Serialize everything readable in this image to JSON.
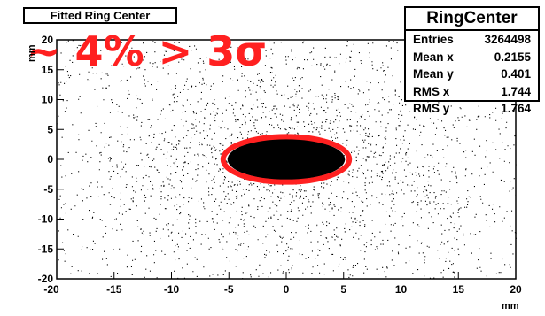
{
  "chart_data": {
    "type": "heatmap",
    "title": "Fitted Ring Center",
    "xlabel": "mm",
    "ylabel": "mm",
    "xlim": [
      -20,
      20
    ],
    "ylim": [
      -20,
      20
    ],
    "x_ticks": [
      "-20",
      "-15",
      "-10",
      "-5",
      "0",
      "5",
      "10",
      "15",
      "20"
    ],
    "y_ticks": [
      "-20",
      "-15",
      "-10",
      "-5",
      "0",
      "5",
      "10",
      "15",
      "20"
    ],
    "stats_box": {
      "title": "RingCenter",
      "rows": [
        {
          "label": "Entries",
          "value": "3264498"
        },
        {
          "label": "Mean x",
          "value": "0.2155"
        },
        {
          "label": "Mean y",
          "value": "0.401"
        },
        {
          "label": "RMS x",
          "value": "1.744"
        },
        {
          "label": "RMS y",
          "value": "1.764"
        }
      ]
    },
    "annotation": "~ 4% > 3σ",
    "highlight_ellipse": {
      "cx": 0,
      "cy": 0,
      "rx": 5.5,
      "ry": 3.8,
      "color": "#ff2020"
    },
    "point_color": "#000000"
  }
}
